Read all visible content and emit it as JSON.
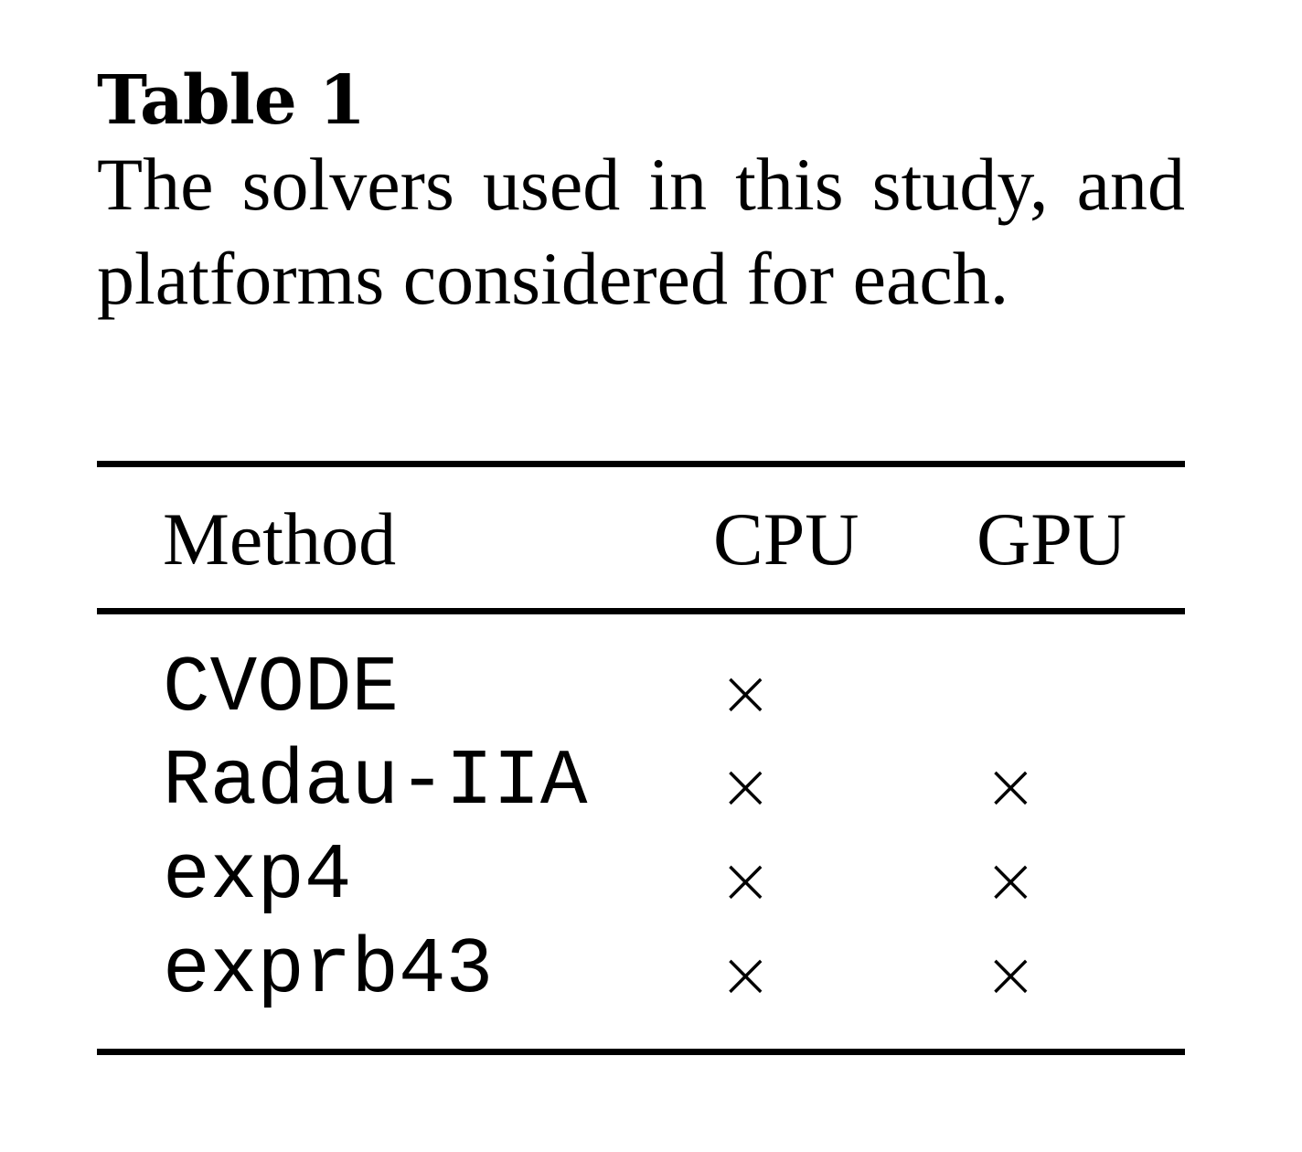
{
  "table": {
    "label": "Table 1",
    "caption": "The solvers used in this study, and platforms considered for each.",
    "headers": {
      "method": "Method",
      "cpu": "CPU",
      "gpu": "GPU"
    },
    "rows": [
      {
        "method": "CVODE",
        "cpu": "×",
        "gpu": ""
      },
      {
        "method": "Radau-IIA",
        "cpu": "×",
        "gpu": "×"
      },
      {
        "method": "exp4",
        "cpu": "×",
        "gpu": "×"
      },
      {
        "method": "exprb43",
        "cpu": "×",
        "gpu": "×"
      }
    ]
  }
}
